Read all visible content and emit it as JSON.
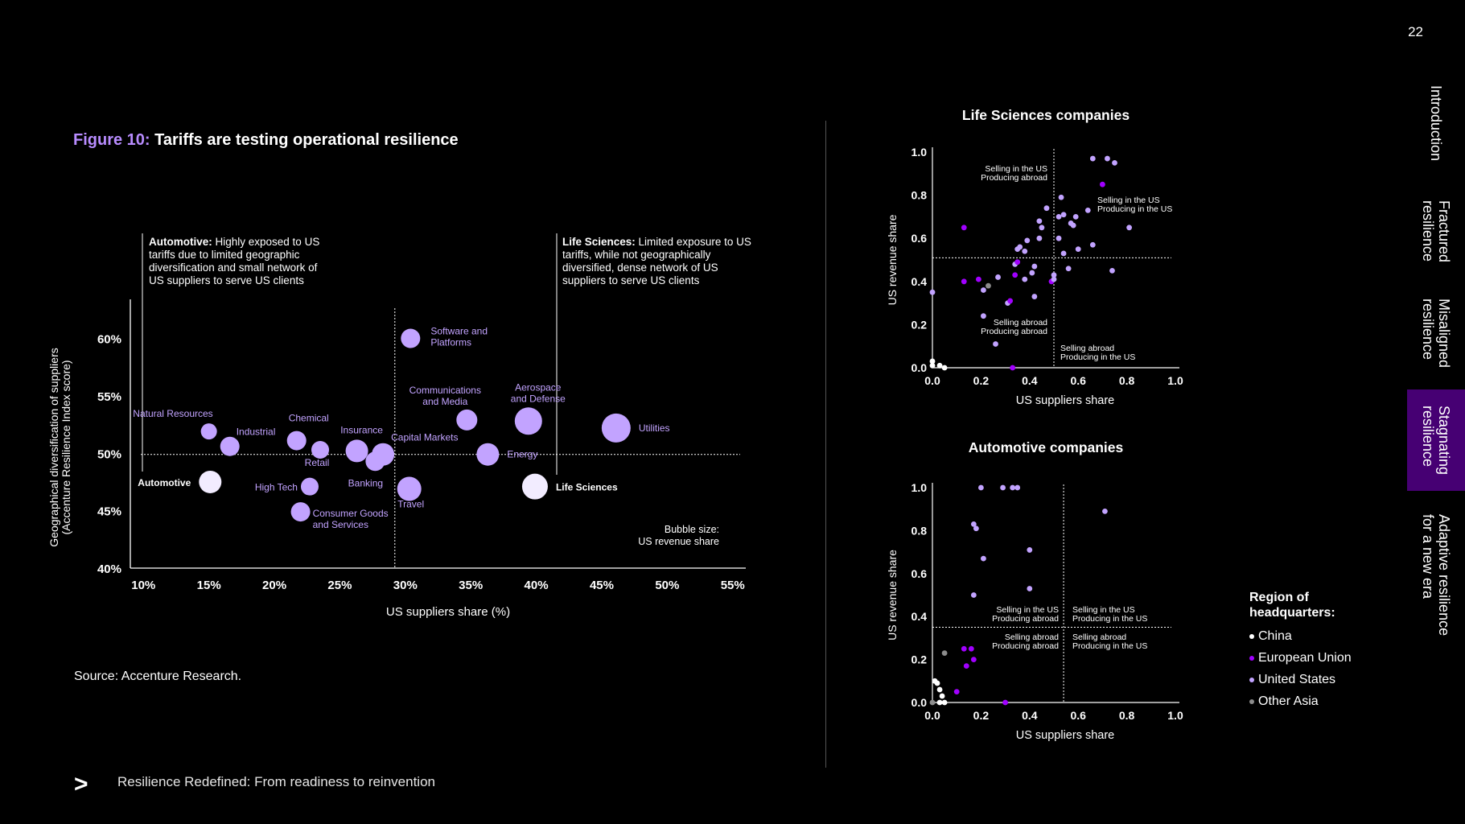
{
  "page_number": "22",
  "figure": {
    "label": "Figure 10:",
    "title": "Tariffs are testing operational resilience"
  },
  "source": "Source: Accenture Research.",
  "footer": {
    "text": "Resilience Redefined: From readiness to reinvention"
  },
  "nav": [
    {
      "label": "Introduction",
      "active": false
    },
    {
      "label": "Fractured\nresilience",
      "active": false
    },
    {
      "label": "Misaligned\nresilience",
      "active": false
    },
    {
      "label": "Stagnating\nresilience",
      "active": true
    },
    {
      "label": "Adaptive resilience\nfor a new era",
      "active": false
    }
  ],
  "legend": {
    "title": "Region of headquarters:",
    "items": [
      {
        "label": "China",
        "color": "#ffffff"
      },
      {
        "label": "European Union",
        "color": "#a100ff"
      },
      {
        "label": "United States",
        "color": "#c2a3ff"
      },
      {
        "label": "Other Asia",
        "color": "#8c8c8c"
      }
    ]
  },
  "chart_data": [
    {
      "type": "scatter",
      "name": "main-bubble",
      "xlabel": "US suppliers share (%)",
      "ylabel_line1": "Geographical diversification of suppliers",
      "ylabel_line2": "(Accenture Resilience Index score)",
      "xlim": [
        9,
        56
      ],
      "ylim": [
        40,
        62
      ],
      "xticks": [
        10,
        15,
        20,
        25,
        30,
        35,
        40,
        45,
        50,
        55
      ],
      "xtick_labels": [
        "10%",
        "15%",
        "20%",
        "25%",
        "30%",
        "35%",
        "40%",
        "45%",
        "50%",
        "55%"
      ],
      "yticks": [
        40,
        45,
        50,
        55,
        60
      ],
      "ytick_labels": [
        "40%",
        "45%",
        "50%",
        "55%",
        "60%"
      ],
      "ref_x": 29.2,
      "ref_y": 49.9,
      "size_note": "Bubble size:\nUS revenue share",
      "callouts": [
        {
          "bold": "Automotive:",
          "text": " Highly exposed to US tariffs due to limited geographic diversification and small network of US suppliers to serve US clients"
        },
        {
          "bold": "Life Sciences:",
          "text": " Limited exposure to US tariffs, while not geographically diversified, dense network of US suppliers to serve US clients"
        }
      ],
      "points": [
        {
          "label": "Automotive",
          "x": 15.1,
          "y": 47.5,
          "size": 14,
          "highlight": true
        },
        {
          "label": "Life Sciences",
          "x": 39.9,
          "y": 47.1,
          "size": 16,
          "highlight": true
        },
        {
          "label": "Natural Resources",
          "x": 15.0,
          "y": 51.9,
          "size": 10
        },
        {
          "label": "Industrial",
          "x": 16.6,
          "y": 50.6,
          "size": 12
        },
        {
          "label": "Chemical",
          "x": 21.7,
          "y": 51.1,
          "size": 12
        },
        {
          "label": "Retail",
          "x": 23.5,
          "y": 50.3,
          "size": 11
        },
        {
          "label": "High Tech",
          "x": 22.7,
          "y": 47.1,
          "size": 11
        },
        {
          "label": "Consumer Goods\nand Services",
          "x": 22.0,
          "y": 44.9,
          "size": 12
        },
        {
          "label": "Insurance",
          "x": 26.3,
          "y": 50.2,
          "size": 14
        },
        {
          "label": "Banking",
          "x": 27.7,
          "y": 49.3,
          "size": 12
        },
        {
          "label": "Capital Markets",
          "x": 28.3,
          "y": 49.9,
          "size": 14
        },
        {
          "label": "Travel",
          "x": 30.3,
          "y": 46.9,
          "size": 15
        },
        {
          "label": "Software and\nPlatforms",
          "x": 30.4,
          "y": 60.0,
          "size": 12
        },
        {
          "label": "Communications\nand Media",
          "x": 34.7,
          "y": 52.9,
          "size": 13
        },
        {
          "label": "Energy",
          "x": 36.3,
          "y": 49.9,
          "size": 14
        },
        {
          "label": "Aerospace\nand Defense",
          "x": 39.4,
          "y": 52.8,
          "size": 17
        },
        {
          "label": "Utilities",
          "x": 46.1,
          "y": 52.2,
          "size": 18
        }
      ]
    },
    {
      "type": "scatter",
      "name": "life-sciences",
      "title": "Life Sciences companies",
      "xlabel": "US suppliers share",
      "ylabel": "US revenue share",
      "xlim": [
        0,
        1
      ],
      "ylim": [
        0,
        1
      ],
      "ticks": [
        0.0,
        0.2,
        0.4,
        0.6,
        0.8,
        1.0
      ],
      "tick_labels": [
        "0.0",
        "0.2",
        "0.4",
        "0.6",
        "0.8",
        "1.0"
      ],
      "ref_x": 0.5,
      "ref_y": 0.51,
      "quadrants": [
        {
          "pos": "tl",
          "text": "Selling in the US\nProducing abroad"
        },
        {
          "pos": "tr",
          "text": "Selling in the US\nProducing in the US"
        },
        {
          "pos": "bl",
          "text": "Selling abroad\nProducing abroad"
        },
        {
          "pos": "br",
          "text": "Selling abroad\nProducing in the US"
        }
      ],
      "points": [
        {
          "x": 0.0,
          "y": 0.35,
          "r": "US"
        },
        {
          "x": 0.0,
          "y": 0.03,
          "r": "CN"
        },
        {
          "x": 0.0,
          "y": 0.01,
          "r": "CN"
        },
        {
          "x": 0.03,
          "y": 0.01,
          "r": "CN"
        },
        {
          "x": 0.05,
          "y": 0.0,
          "r": "CN"
        },
        {
          "x": 0.13,
          "y": 0.65,
          "r": "EU"
        },
        {
          "x": 0.13,
          "y": 0.4,
          "r": "EU"
        },
        {
          "x": 0.19,
          "y": 0.41,
          "r": "EU"
        },
        {
          "x": 0.21,
          "y": 0.36,
          "r": "US"
        },
        {
          "x": 0.23,
          "y": 0.38,
          "r": "OA"
        },
        {
          "x": 0.21,
          "y": 0.24,
          "r": "US"
        },
        {
          "x": 0.26,
          "y": 0.11,
          "r": "US"
        },
        {
          "x": 0.27,
          "y": 0.42,
          "r": "US"
        },
        {
          "x": 0.31,
          "y": 0.3,
          "r": "US"
        },
        {
          "x": 0.32,
          "y": 0.31,
          "r": "EU"
        },
        {
          "x": 0.33,
          "y": 0.0,
          "r": "EU"
        },
        {
          "x": 0.34,
          "y": 0.43,
          "r": "EU"
        },
        {
          "x": 0.34,
          "y": 0.48,
          "r": "US"
        },
        {
          "x": 0.35,
          "y": 0.49,
          "r": "EU"
        },
        {
          "x": 0.35,
          "y": 0.55,
          "r": "US"
        },
        {
          "x": 0.36,
          "y": 0.56,
          "r": "US"
        },
        {
          "x": 0.38,
          "y": 0.54,
          "r": "US"
        },
        {
          "x": 0.39,
          "y": 0.59,
          "r": "US"
        },
        {
          "x": 0.38,
          "y": 0.41,
          "r": "US"
        },
        {
          "x": 0.41,
          "y": 0.44,
          "r": "US"
        },
        {
          "x": 0.42,
          "y": 0.47,
          "r": "US"
        },
        {
          "x": 0.42,
          "y": 0.33,
          "r": "US"
        },
        {
          "x": 0.44,
          "y": 0.6,
          "r": "US"
        },
        {
          "x": 0.44,
          "y": 0.68,
          "r": "US"
        },
        {
          "x": 0.45,
          "y": 0.65,
          "r": "US"
        },
        {
          "x": 0.47,
          "y": 0.74,
          "r": "US"
        },
        {
          "x": 0.49,
          "y": 0.4,
          "r": "EU"
        },
        {
          "x": 0.5,
          "y": 0.41,
          "r": "US"
        },
        {
          "x": 0.5,
          "y": 0.43,
          "r": "US"
        },
        {
          "x": 0.52,
          "y": 0.7,
          "r": "US"
        },
        {
          "x": 0.52,
          "y": 0.6,
          "r": "US"
        },
        {
          "x": 0.53,
          "y": 0.79,
          "r": "US"
        },
        {
          "x": 0.54,
          "y": 0.71,
          "r": "US"
        },
        {
          "x": 0.54,
          "y": 0.53,
          "r": "US"
        },
        {
          "x": 0.56,
          "y": 0.46,
          "r": "US"
        },
        {
          "x": 0.57,
          "y": 0.67,
          "r": "US"
        },
        {
          "x": 0.58,
          "y": 0.66,
          "r": "US"
        },
        {
          "x": 0.59,
          "y": 0.7,
          "r": "US"
        },
        {
          "x": 0.6,
          "y": 0.55,
          "r": "US"
        },
        {
          "x": 0.64,
          "y": 0.73,
          "r": "US"
        },
        {
          "x": 0.66,
          "y": 0.57,
          "r": "US"
        },
        {
          "x": 0.66,
          "y": 0.97,
          "r": "US"
        },
        {
          "x": 0.7,
          "y": 0.85,
          "r": "EU"
        },
        {
          "x": 0.72,
          "y": 0.97,
          "r": "US"
        },
        {
          "x": 0.74,
          "y": 0.45,
          "r": "US"
        },
        {
          "x": 0.75,
          "y": 0.95,
          "r": "US"
        },
        {
          "x": 0.81,
          "y": 0.65,
          "r": "US"
        }
      ]
    },
    {
      "type": "scatter",
      "name": "automotive",
      "title": "Automotive companies",
      "xlabel": "US suppliers share",
      "ylabel": "US revenue share",
      "xlim": [
        0,
        1
      ],
      "ylim": [
        0,
        1
      ],
      "ticks": [
        0.0,
        0.2,
        0.4,
        0.6,
        0.8,
        1.0
      ],
      "tick_labels": [
        "0.0",
        "0.2",
        "0.4",
        "0.6",
        "0.8",
        "1.0"
      ],
      "ref_x": 0.54,
      "ref_y": 0.35,
      "quadrants": [
        {
          "pos": "tl",
          "text": "Selling in the US\nProducing abroad"
        },
        {
          "pos": "tr",
          "text": "Selling in the US\nProducing in the US"
        },
        {
          "pos": "bl",
          "text": "Selling abroad\nProducing abroad"
        },
        {
          "pos": "br",
          "text": "Selling abroad\nProducing in the US"
        }
      ],
      "points": [
        {
          "x": 0.0,
          "y": 0.0,
          "r": "OA"
        },
        {
          "x": 0.01,
          "y": 0.1,
          "r": "CN"
        },
        {
          "x": 0.02,
          "y": 0.09,
          "r": "CN"
        },
        {
          "x": 0.03,
          "y": 0.06,
          "r": "CN"
        },
        {
          "x": 0.04,
          "y": 0.03,
          "r": "CN"
        },
        {
          "x": 0.03,
          "y": 0.0,
          "r": "CN"
        },
        {
          "x": 0.05,
          "y": 0.0,
          "r": "CN"
        },
        {
          "x": 0.05,
          "y": 0.23,
          "r": "OA"
        },
        {
          "x": 0.1,
          "y": 0.05,
          "r": "EU"
        },
        {
          "x": 0.13,
          "y": 0.25,
          "r": "EU"
        },
        {
          "x": 0.14,
          "y": 0.17,
          "r": "EU"
        },
        {
          "x": 0.16,
          "y": 0.25,
          "r": "EU"
        },
        {
          "x": 0.17,
          "y": 0.2,
          "r": "EU"
        },
        {
          "x": 0.17,
          "y": 0.5,
          "r": "US"
        },
        {
          "x": 0.17,
          "y": 0.83,
          "r": "US"
        },
        {
          "x": 0.18,
          "y": 0.81,
          "r": "US"
        },
        {
          "x": 0.2,
          "y": 1.0,
          "r": "US"
        },
        {
          "x": 0.21,
          "y": 0.67,
          "r": "US"
        },
        {
          "x": 0.29,
          "y": 1.0,
          "r": "US"
        },
        {
          "x": 0.3,
          "y": 0.0,
          "r": "EU"
        },
        {
          "x": 0.33,
          "y": 1.0,
          "r": "US"
        },
        {
          "x": 0.35,
          "y": 1.0,
          "r": "US"
        },
        {
          "x": 0.4,
          "y": 0.71,
          "r": "US"
        },
        {
          "x": 0.4,
          "y": 0.53,
          "r": "US"
        },
        {
          "x": 0.71,
          "y": 0.89,
          "r": "US"
        }
      ]
    }
  ]
}
